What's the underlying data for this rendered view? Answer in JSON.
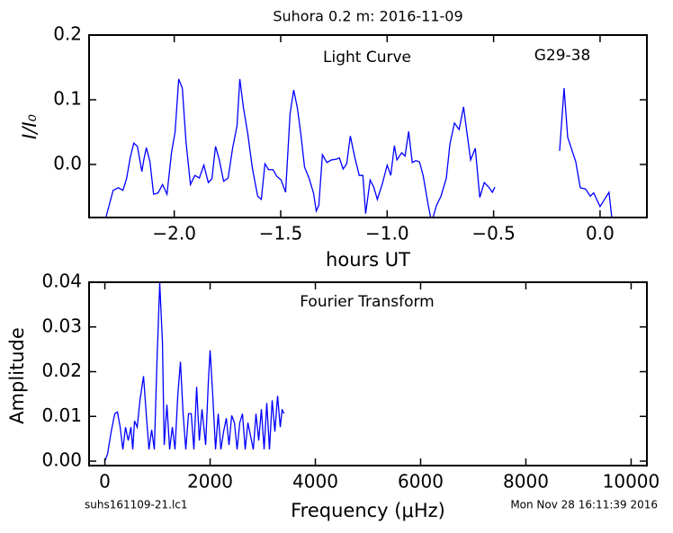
{
  "title": "Suhora 0.2 m:  2016-11-09",
  "footer": {
    "left": "suhs161109-21.lc1",
    "right": "Mon Nov 28 16:11:39 2016"
  },
  "chart_data": [
    {
      "type": "line",
      "annotations": [
        "Light Curve",
        "G29-38"
      ],
      "xlabel": "hours UT",
      "ylabel": "I/I₀",
      "x": [
        -2.321,
        -2.287,
        -2.262,
        -2.241,
        -2.224,
        -2.207,
        -2.19,
        -2.173,
        -2.152,
        -2.143,
        -2.131,
        -2.114,
        -2.097,
        -2.076,
        -2.055,
        -2.034,
        -2.013,
        -1.996,
        -1.979,
        -1.962,
        -1.945,
        -1.924,
        -1.903,
        -1.882,
        -1.861,
        -1.84,
        -1.823,
        -1.806,
        -1.789,
        -1.768,
        -1.747,
        -1.726,
        -1.705,
        -1.692,
        -1.675,
        -1.654,
        -1.633,
        -1.608,
        -1.591,
        -1.574,
        -1.557,
        -1.536,
        -1.519,
        -1.498,
        -1.477,
        -1.456,
        -1.439,
        -1.422,
        -1.405,
        -1.388,
        -1.367,
        -1.346,
        -1.333,
        -1.321,
        -1.304,
        -1.283,
        -1.262,
        -1.241,
        -1.224,
        -1.207,
        -1.19,
        -1.173,
        -1.152,
        -1.131,
        -1.114,
        -1.101,
        -1.08,
        -1.063,
        -1.046,
        -1.021,
        -1.0,
        -0.983,
        -0.966,
        -0.954,
        -0.932,
        -0.916,
        -0.899,
        -0.882,
        -0.865,
        -0.848,
        -0.831,
        -0.806,
        -0.793,
        -0.785,
        -0.768,
        -0.747,
        -0.722,
        -0.705,
        -0.684,
        -0.662,
        -0.641,
        -0.624,
        -0.608,
        -0.586,
        -0.565,
        -0.544,
        -0.523,
        -0.506,
        -0.494,
        null,
        -0.19,
        -0.169,
        -0.152,
        -0.135,
        -0.114,
        -0.093,
        -0.068,
        -0.046,
        -0.03,
        0.0,
        0.021,
        0.042,
        0.055
      ],
      "series": [
        {
          "color": "#0000ff",
          "values": [
            -0.082,
            -0.04,
            -0.036,
            -0.04,
            -0.022,
            0.01,
            0.033,
            0.028,
            -0.011,
            0.007,
            0.026,
            0.004,
            -0.046,
            -0.044,
            -0.031,
            -0.046,
            0.018,
            0.05,
            0.132,
            0.118,
            0.036,
            -0.031,
            -0.017,
            -0.021,
            -0.001,
            -0.028,
            -0.022,
            0.028,
            0.008,
            -0.026,
            -0.021,
            0.025,
            0.06,
            0.132,
            0.088,
            0.046,
            -0.006,
            -0.049,
            -0.054,
            0.001,
            -0.008,
            -0.008,
            -0.018,
            -0.024,
            -0.043,
            0.078,
            0.115,
            0.088,
            0.046,
            -0.004,
            -0.021,
            -0.044,
            -0.072,
            -0.063,
            0.015,
            0.003,
            0.007,
            0.008,
            0.01,
            -0.007,
            0.001,
            0.044,
            0.011,
            -0.017,
            -0.017,
            -0.076,
            -0.024,
            -0.035,
            -0.054,
            -0.028,
            -0.001,
            -0.017,
            0.029,
            0.007,
            0.018,
            0.013,
            0.051,
            0.003,
            0.006,
            0.004,
            -0.017,
            -0.065,
            -0.086,
            -0.082,
            -0.063,
            -0.049,
            -0.021,
            0.032,
            0.064,
            0.054,
            0.089,
            0.046,
            0.007,
            0.025,
            -0.051,
            -0.028,
            -0.035,
            -0.043,
            -0.035,
            null,
            0.021,
            0.118,
            0.042,
            0.025,
            0.004,
            -0.036,
            -0.038,
            -0.049,
            -0.044,
            -0.065,
            -0.054,
            -0.043,
            -0.082
          ]
        }
      ],
      "xlim": [
        -2.4,
        0.22
      ],
      "ylim": [
        -0.082,
        0.2
      ],
      "xticks": [
        {
          "value": -2.0,
          "label": "−2.0"
        },
        {
          "value": -1.5,
          "label": "−1.5"
        },
        {
          "value": -1.0,
          "label": "−1.0"
        },
        {
          "value": -0.5,
          "label": "−0.5"
        },
        {
          "value": 0.0,
          "label": "0.0"
        }
      ],
      "yticks": [
        {
          "value": 0.0,
          "label": "0.0"
        },
        0.1,
        0.2
      ]
    },
    {
      "type": "line",
      "annotations": [
        "Fourier Transform"
      ],
      "xlabel": "Frequency (μHz)",
      "ylabel": "Amplitude",
      "x": [
        0,
        51,
        120,
        188,
        239,
        291,
        342,
        393,
        444,
        496,
        530,
        564,
        615,
        667,
        735,
        786,
        838,
        889,
        940,
        991,
        1043,
        1094,
        1128,
        1179,
        1231,
        1282,
        1333,
        1385,
        1436,
        1487,
        1538,
        1590,
        1641,
        1692,
        1744,
        1795,
        1846,
        1915,
        1966,
        2000,
        2051,
        2103,
        2154,
        2205,
        2256,
        2308,
        2359,
        2410,
        2462,
        2513,
        2564,
        2615,
        2667,
        2718,
        2769,
        2821,
        2872,
        2923,
        2974,
        3026,
        3077,
        3128,
        3179,
        3231,
        3282,
        3333,
        3368,
        3402
      ],
      "series": [
        {
          "color": "#0000ff",
          "values": [
            0,
            0.0016,
            0.0066,
            0.0106,
            0.011,
            0.0076,
            0.0026,
            0.0076,
            0.0046,
            0.0076,
            0.0026,
            0.009,
            0.0076,
            0.0136,
            0.019,
            0.0106,
            0.0026,
            0.007,
            0.0026,
            0.0226,
            0.0398,
            0.0266,
            0.0036,
            0.0126,
            0.0026,
            0.0076,
            0.0026,
            0.0146,
            0.0222,
            0.0106,
            0.0026,
            0.0106,
            0.0106,
            0.0026,
            0.0166,
            0.0046,
            0.0116,
            0.0036,
            0.0176,
            0.0248,
            0.0146,
            0.0026,
            0.0106,
            0.0026,
            0.0066,
            0.0096,
            0.0036,
            0.0102,
            0.0086,
            0.0026,
            0.0086,
            0.0106,
            0.0026,
            0.0086,
            0.0056,
            0.0026,
            0.0106,
            0.0046,
            0.0116,
            0.0026,
            0.013,
            0.0026,
            0.0136,
            0.0066,
            0.0146,
            0.0076,
            0.0116,
            0.0106
          ]
        }
      ],
      "xlim": [
        -300,
        10300
      ],
      "ylim": [
        -0.001,
        0.04
      ],
      "xticks": [
        0,
        2000,
        4000,
        6000,
        8000,
        10000
      ],
      "yticks": [
        {
          "value": 0.0,
          "label": "0.00"
        },
        0.01,
        0.02,
        0.03,
        0.04
      ]
    }
  ]
}
